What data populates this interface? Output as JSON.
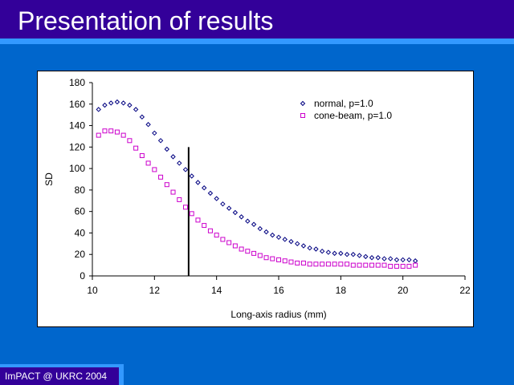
{
  "slide": {
    "title": "Presentation of results",
    "footer": "ImPACT @ UKRC 2004",
    "colors": {
      "background": "#0066cc",
      "title_bar": "#330099",
      "accent": "#3399ff"
    }
  },
  "chart_data": {
    "type": "scatter",
    "xlabel": "Long-axis radius (mm)",
    "ylabel": "SD",
    "xlim": [
      10,
      22
    ],
    "ylim": [
      0,
      180
    ],
    "xticks": [
      10,
      12,
      14,
      16,
      18,
      20,
      22
    ],
    "yticks": [
      0,
      20,
      40,
      60,
      80,
      100,
      120,
      140,
      160,
      180
    ],
    "grid": false,
    "legend_position": "top-right",
    "series": [
      {
        "name": "normal, p=1.0",
        "marker": "diamond",
        "color": "#000080",
        "points": [
          [
            10.2,
            155
          ],
          [
            10.4,
            159
          ],
          [
            10.6,
            161
          ],
          [
            10.8,
            162
          ],
          [
            11.0,
            161
          ],
          [
            11.2,
            159
          ],
          [
            11.4,
            155
          ],
          [
            11.6,
            148
          ],
          [
            11.8,
            141
          ],
          [
            12.0,
            133
          ],
          [
            12.2,
            126
          ],
          [
            12.4,
            118
          ],
          [
            12.6,
            111
          ],
          [
            12.8,
            105
          ],
          [
            13.0,
            99
          ],
          [
            13.2,
            93
          ],
          [
            13.4,
            87
          ],
          [
            13.6,
            82
          ],
          [
            13.8,
            77
          ],
          [
            14.0,
            72
          ],
          [
            14.2,
            67
          ],
          [
            14.4,
            63
          ],
          [
            14.6,
            59
          ],
          [
            14.8,
            55
          ],
          [
            15.0,
            51
          ],
          [
            15.2,
            48
          ],
          [
            15.4,
            44
          ],
          [
            15.6,
            41
          ],
          [
            15.8,
            38
          ],
          [
            16.0,
            36
          ],
          [
            16.2,
            34
          ],
          [
            16.4,
            32
          ],
          [
            16.6,
            30
          ],
          [
            16.8,
            28
          ],
          [
            17.0,
            26
          ],
          [
            17.2,
            25
          ],
          [
            17.4,
            23
          ],
          [
            17.6,
            22
          ],
          [
            17.8,
            21
          ],
          [
            18.0,
            21
          ],
          [
            18.2,
            20
          ],
          [
            18.4,
            20
          ],
          [
            18.6,
            19
          ],
          [
            18.8,
            18
          ],
          [
            19.0,
            17
          ],
          [
            19.2,
            17
          ],
          [
            19.4,
            16
          ],
          [
            19.6,
            16
          ],
          [
            19.8,
            15
          ],
          [
            20.0,
            15
          ],
          [
            20.2,
            15
          ],
          [
            20.4,
            14
          ]
        ]
      },
      {
        "name": "cone-beam, p=1.0",
        "marker": "square",
        "color": "#cc00cc",
        "points": [
          [
            10.2,
            131
          ],
          [
            10.4,
            135
          ],
          [
            10.6,
            135
          ],
          [
            10.8,
            134
          ],
          [
            11.0,
            131
          ],
          [
            11.2,
            126
          ],
          [
            11.4,
            119
          ],
          [
            11.6,
            112
          ],
          [
            11.8,
            105
          ],
          [
            12.0,
            99
          ],
          [
            12.2,
            92
          ],
          [
            12.4,
            85
          ],
          [
            12.6,
            78
          ],
          [
            12.8,
            71
          ],
          [
            13.0,
            64
          ],
          [
            13.2,
            58
          ],
          [
            13.4,
            52
          ],
          [
            13.6,
            47
          ],
          [
            13.8,
            42
          ],
          [
            14.0,
            38
          ],
          [
            14.2,
            34
          ],
          [
            14.4,
            31
          ],
          [
            14.6,
            28
          ],
          [
            14.8,
            25
          ],
          [
            15.0,
            23
          ],
          [
            15.2,
            21
          ],
          [
            15.4,
            19
          ],
          [
            15.6,
            17
          ],
          [
            15.8,
            16
          ],
          [
            16.0,
            15
          ],
          [
            16.2,
            14
          ],
          [
            16.4,
            13
          ],
          [
            16.6,
            12
          ],
          [
            16.8,
            12
          ],
          [
            17.0,
            11
          ],
          [
            17.2,
            11
          ],
          [
            17.4,
            11
          ],
          [
            17.6,
            11
          ],
          [
            17.8,
            11
          ],
          [
            18.0,
            11
          ],
          [
            18.2,
            11
          ],
          [
            18.4,
            10
          ],
          [
            18.6,
            10
          ],
          [
            18.8,
            10
          ],
          [
            19.0,
            10
          ],
          [
            19.2,
            10
          ],
          [
            19.4,
            10
          ],
          [
            19.6,
            9
          ],
          [
            19.8,
            9
          ],
          [
            20.0,
            9
          ],
          [
            20.2,
            9
          ],
          [
            20.4,
            10
          ]
        ]
      }
    ],
    "annotations": [
      {
        "type": "vertical-line",
        "x": 13.1,
        "y_from": 0,
        "y_to": 120,
        "color": "#000000"
      }
    ]
  }
}
